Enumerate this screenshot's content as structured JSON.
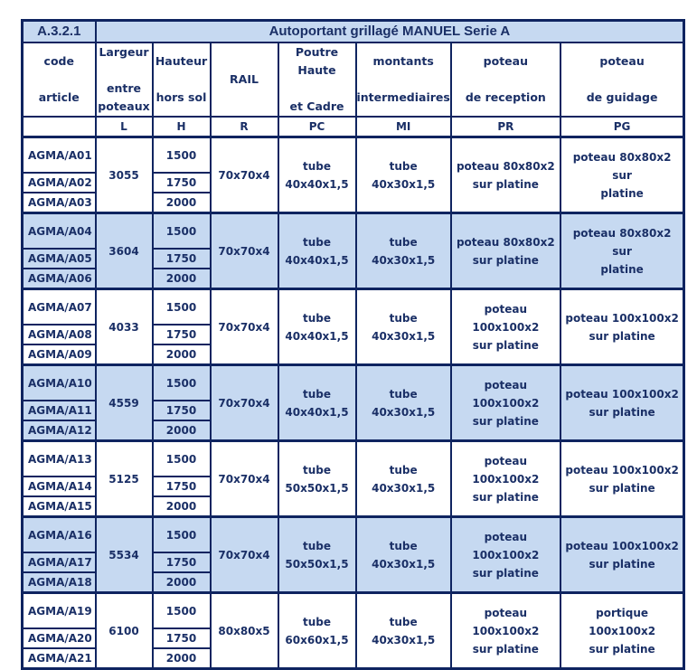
{
  "title": {
    "code": "A.3.2.1",
    "name": "Autoportant grillagé MANUEL Serie A"
  },
  "headers": [
    [
      "code",
      "",
      "article"
    ],
    [
      "Largeur",
      "",
      "entre",
      "poteaux"
    ],
    [
      "Hauteur",
      "",
      "hors sol"
    ],
    [
      "RAIL"
    ],
    [
      "Poutre",
      "Haute",
      "",
      "et Cadre"
    ],
    [
      "montants",
      "",
      "intermediaires"
    ],
    [
      "poteau",
      "",
      "de reception"
    ],
    [
      "poteau",
      "",
      "de guidage"
    ]
  ],
  "letters": [
    "",
    "L",
    "H",
    "R",
    "PC",
    "MI",
    "PR",
    "PG"
  ],
  "colors": {
    "border": "#0f2460",
    "text": "#1a2f66",
    "band": "#c6d9f1"
  },
  "groups": [
    {
      "codes": [
        "AGMA/A01",
        "AGMA/A02",
        "AGMA/A03"
      ],
      "L": "3055",
      "H": [
        "1500",
        "1750",
        "2000"
      ],
      "R": "70x70x4",
      "PC": [
        "tube",
        "40x40x1,5"
      ],
      "MI": "tube 40x30x1,5",
      "PR": [
        "poteau 80x80x2",
        "sur platine"
      ],
      "PG": [
        "poteau 80x80x2 sur",
        "platine"
      ],
      "shaded": false
    },
    {
      "codes": [
        "AGMA/A04",
        "AGMA/A05",
        "AGMA/A06"
      ],
      "L": "3604",
      "H": [
        "1500",
        "1750",
        "2000"
      ],
      "R": "70x70x4",
      "PC": [
        "tube",
        "40x40x1,5"
      ],
      "MI": "tube 40x30x1,5",
      "PR": [
        "poteau 80x80x2",
        "sur platine"
      ],
      "PG": [
        "poteau 80x80x2 sur",
        "platine"
      ],
      "shaded": true
    },
    {
      "codes": [
        "AGMA/A07",
        "AGMA/A08",
        "AGMA/A09"
      ],
      "L": "4033",
      "H": [
        "1500",
        "1750",
        "2000"
      ],
      "R": "70x70x4",
      "PC": [
        "tube",
        "40x40x1,5"
      ],
      "MI": "tube 40x30x1,5",
      "PR": [
        "poteau 100x100x2",
        "sur platine"
      ],
      "PG": [
        "poteau 100x100x2",
        "sur platine"
      ],
      "shaded": false
    },
    {
      "codes": [
        "AGMA/A10",
        "AGMA/A11",
        "AGMA/A12"
      ],
      "L": "4559",
      "H": [
        "1500",
        "1750",
        "2000"
      ],
      "R": "70x70x4",
      "PC": [
        "tube",
        "40x40x1,5"
      ],
      "MI": "tube 40x30x1,5",
      "PR": [
        "poteau 100x100x2",
        "sur platine"
      ],
      "PG": [
        "poteau 100x100x2",
        "sur platine"
      ],
      "shaded": true
    },
    {
      "codes": [
        "AGMA/A13",
        "AGMA/A14",
        "AGMA/A15"
      ],
      "L": "5125",
      "H": [
        "1500",
        "1750",
        "2000"
      ],
      "R": "70x70x4",
      "PC": [
        "tube",
        "50x50x1,5"
      ],
      "MI": "tube 40x30x1,5",
      "PR": [
        "poteau 100x100x2",
        "sur platine"
      ],
      "PG": [
        "poteau 100x100x2",
        "sur platine"
      ],
      "shaded": false
    },
    {
      "codes": [
        "AGMA/A16",
        "AGMA/A17",
        "AGMA/A18"
      ],
      "L": "5534",
      "H": [
        "1500",
        "1750",
        "2000"
      ],
      "R": "70x70x4",
      "PC": [
        "tube",
        "50x50x1,5"
      ],
      "MI": "tube 40x30x1,5",
      "PR": [
        "poteau 100x100x2",
        "sur platine"
      ],
      "PG": [
        "poteau 100x100x2",
        "sur platine"
      ],
      "shaded": true
    },
    {
      "codes": [
        "AGMA/A19",
        "AGMA/A20",
        "AGMA/A21"
      ],
      "L": "6100",
      "H": [
        "1500",
        "1750",
        "2000"
      ],
      "R": "80x80x5",
      "PC": [
        "tube",
        "60x60x1,5"
      ],
      "MI": "tube 40x30x1,5",
      "PR": [
        "poteau 100x100x2",
        "sur platine"
      ],
      "PG": [
        "portique 100x100x2",
        "sur platine"
      ],
      "shaded": false
    }
  ]
}
